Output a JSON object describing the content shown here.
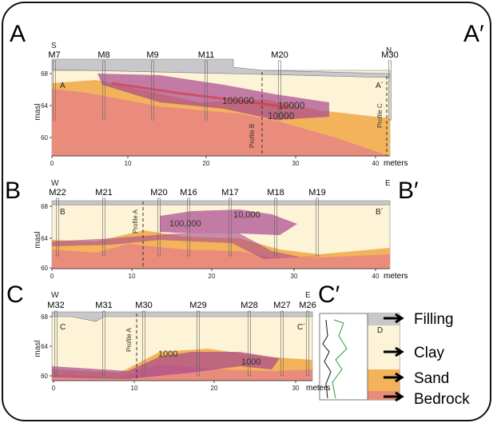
{
  "panels": [
    {
      "label": "A",
      "prime_label": "A′",
      "left_dir": "S",
      "right_dir": "N",
      "wells": [
        "M7",
        "M8",
        "M9",
        "M11",
        "M20",
        "M30"
      ],
      "inner_left": "A",
      "inner_right": "A´",
      "y_label": "masl",
      "yticks": [
        "68",
        "64",
        "60"
      ],
      "xticks": [
        "0",
        "10",
        "20",
        "30",
        "40"
      ],
      "x_unit": "meters",
      "annotations": [
        "100000",
        "10000",
        "10000",
        "Profile B",
        "Profile C"
      ]
    },
    {
      "label": "B",
      "prime_label": "B′",
      "left_dir": "W",
      "right_dir": "E",
      "wells": [
        "M22",
        "M21",
        "M20",
        "M16",
        "M17",
        "M18",
        "M19"
      ],
      "inner_left": "B",
      "inner_right": "B´",
      "y_label": "masl",
      "yticks": [
        "68",
        "64",
        "60"
      ],
      "xticks": [
        "0",
        "10",
        "20",
        "30",
        "40"
      ],
      "x_unit": "meters",
      "annotations": [
        "100,000",
        "10,000",
        "Profile A"
      ]
    },
    {
      "label": "C",
      "prime_label": "C′",
      "left_dir": "W",
      "right_dir": "E",
      "wells": [
        "M32",
        "M31",
        "M30",
        "M29",
        "M28",
        "M27",
        "M26"
      ],
      "inner_left": "C",
      "inner_right": "C´",
      "y_label": "masl",
      "yticks": [
        "68",
        "64",
        "60"
      ],
      "xticks": [
        "0",
        "10",
        "20",
        "30"
      ],
      "x_unit": "meters",
      "annotations": [
        "1000",
        "1000",
        "Profile A"
      ]
    }
  ],
  "log_label": "D",
  "legend": [
    "Filling",
    "Clay",
    "Sand",
    "Bedrock"
  ]
}
